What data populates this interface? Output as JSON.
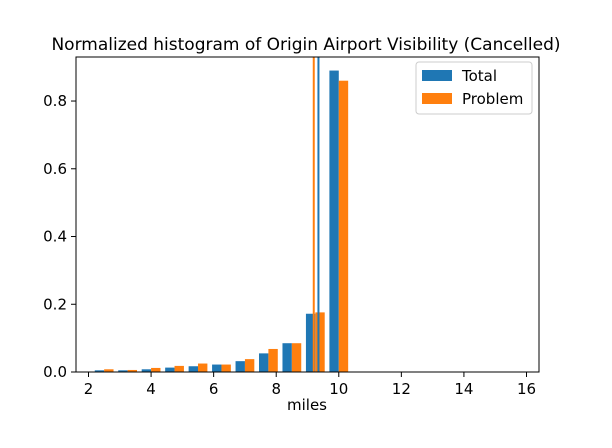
{
  "chart_data": {
    "type": "bar",
    "title": "Normalized histogram of Origin Airport Visibility (Cancelled)",
    "xlabel": "miles",
    "ylabel": "",
    "xlim": [
      1.6,
      16.4
    ],
    "ylim": [
      0,
      0.93
    ],
    "xticks": [
      2,
      4,
      6,
      8,
      10,
      12,
      14,
      16
    ],
    "yticks": [
      0.0,
      0.2,
      0.4,
      0.6,
      0.8
    ],
    "bin_centers": [
      2.5,
      3.25,
      4.0,
      4.75,
      5.5,
      6.25,
      7.0,
      7.75,
      8.5,
      9.25,
      10.0
    ],
    "bar_width": 0.3,
    "series": [
      {
        "name": "Total",
        "color": "#1f77b4",
        "values": [
          0.005,
          0.005,
          0.008,
          0.013,
          0.017,
          0.022,
          0.032,
          0.055,
          0.085,
          0.172,
          0.89
        ]
      },
      {
        "name": "Problem",
        "color": "#ff7f0e",
        "values": [
          0.008,
          0.006,
          0.012,
          0.018,
          0.025,
          0.022,
          0.038,
          0.068,
          0.085,
          0.176,
          0.86
        ]
      }
    ],
    "vlines": [
      {
        "series": "Total",
        "x": 9.35,
        "color": "#1f77b4"
      },
      {
        "series": "Problem",
        "x": 9.2,
        "color": "#ff7f0e"
      }
    ],
    "legend": "top-right",
    "grid": false
  }
}
